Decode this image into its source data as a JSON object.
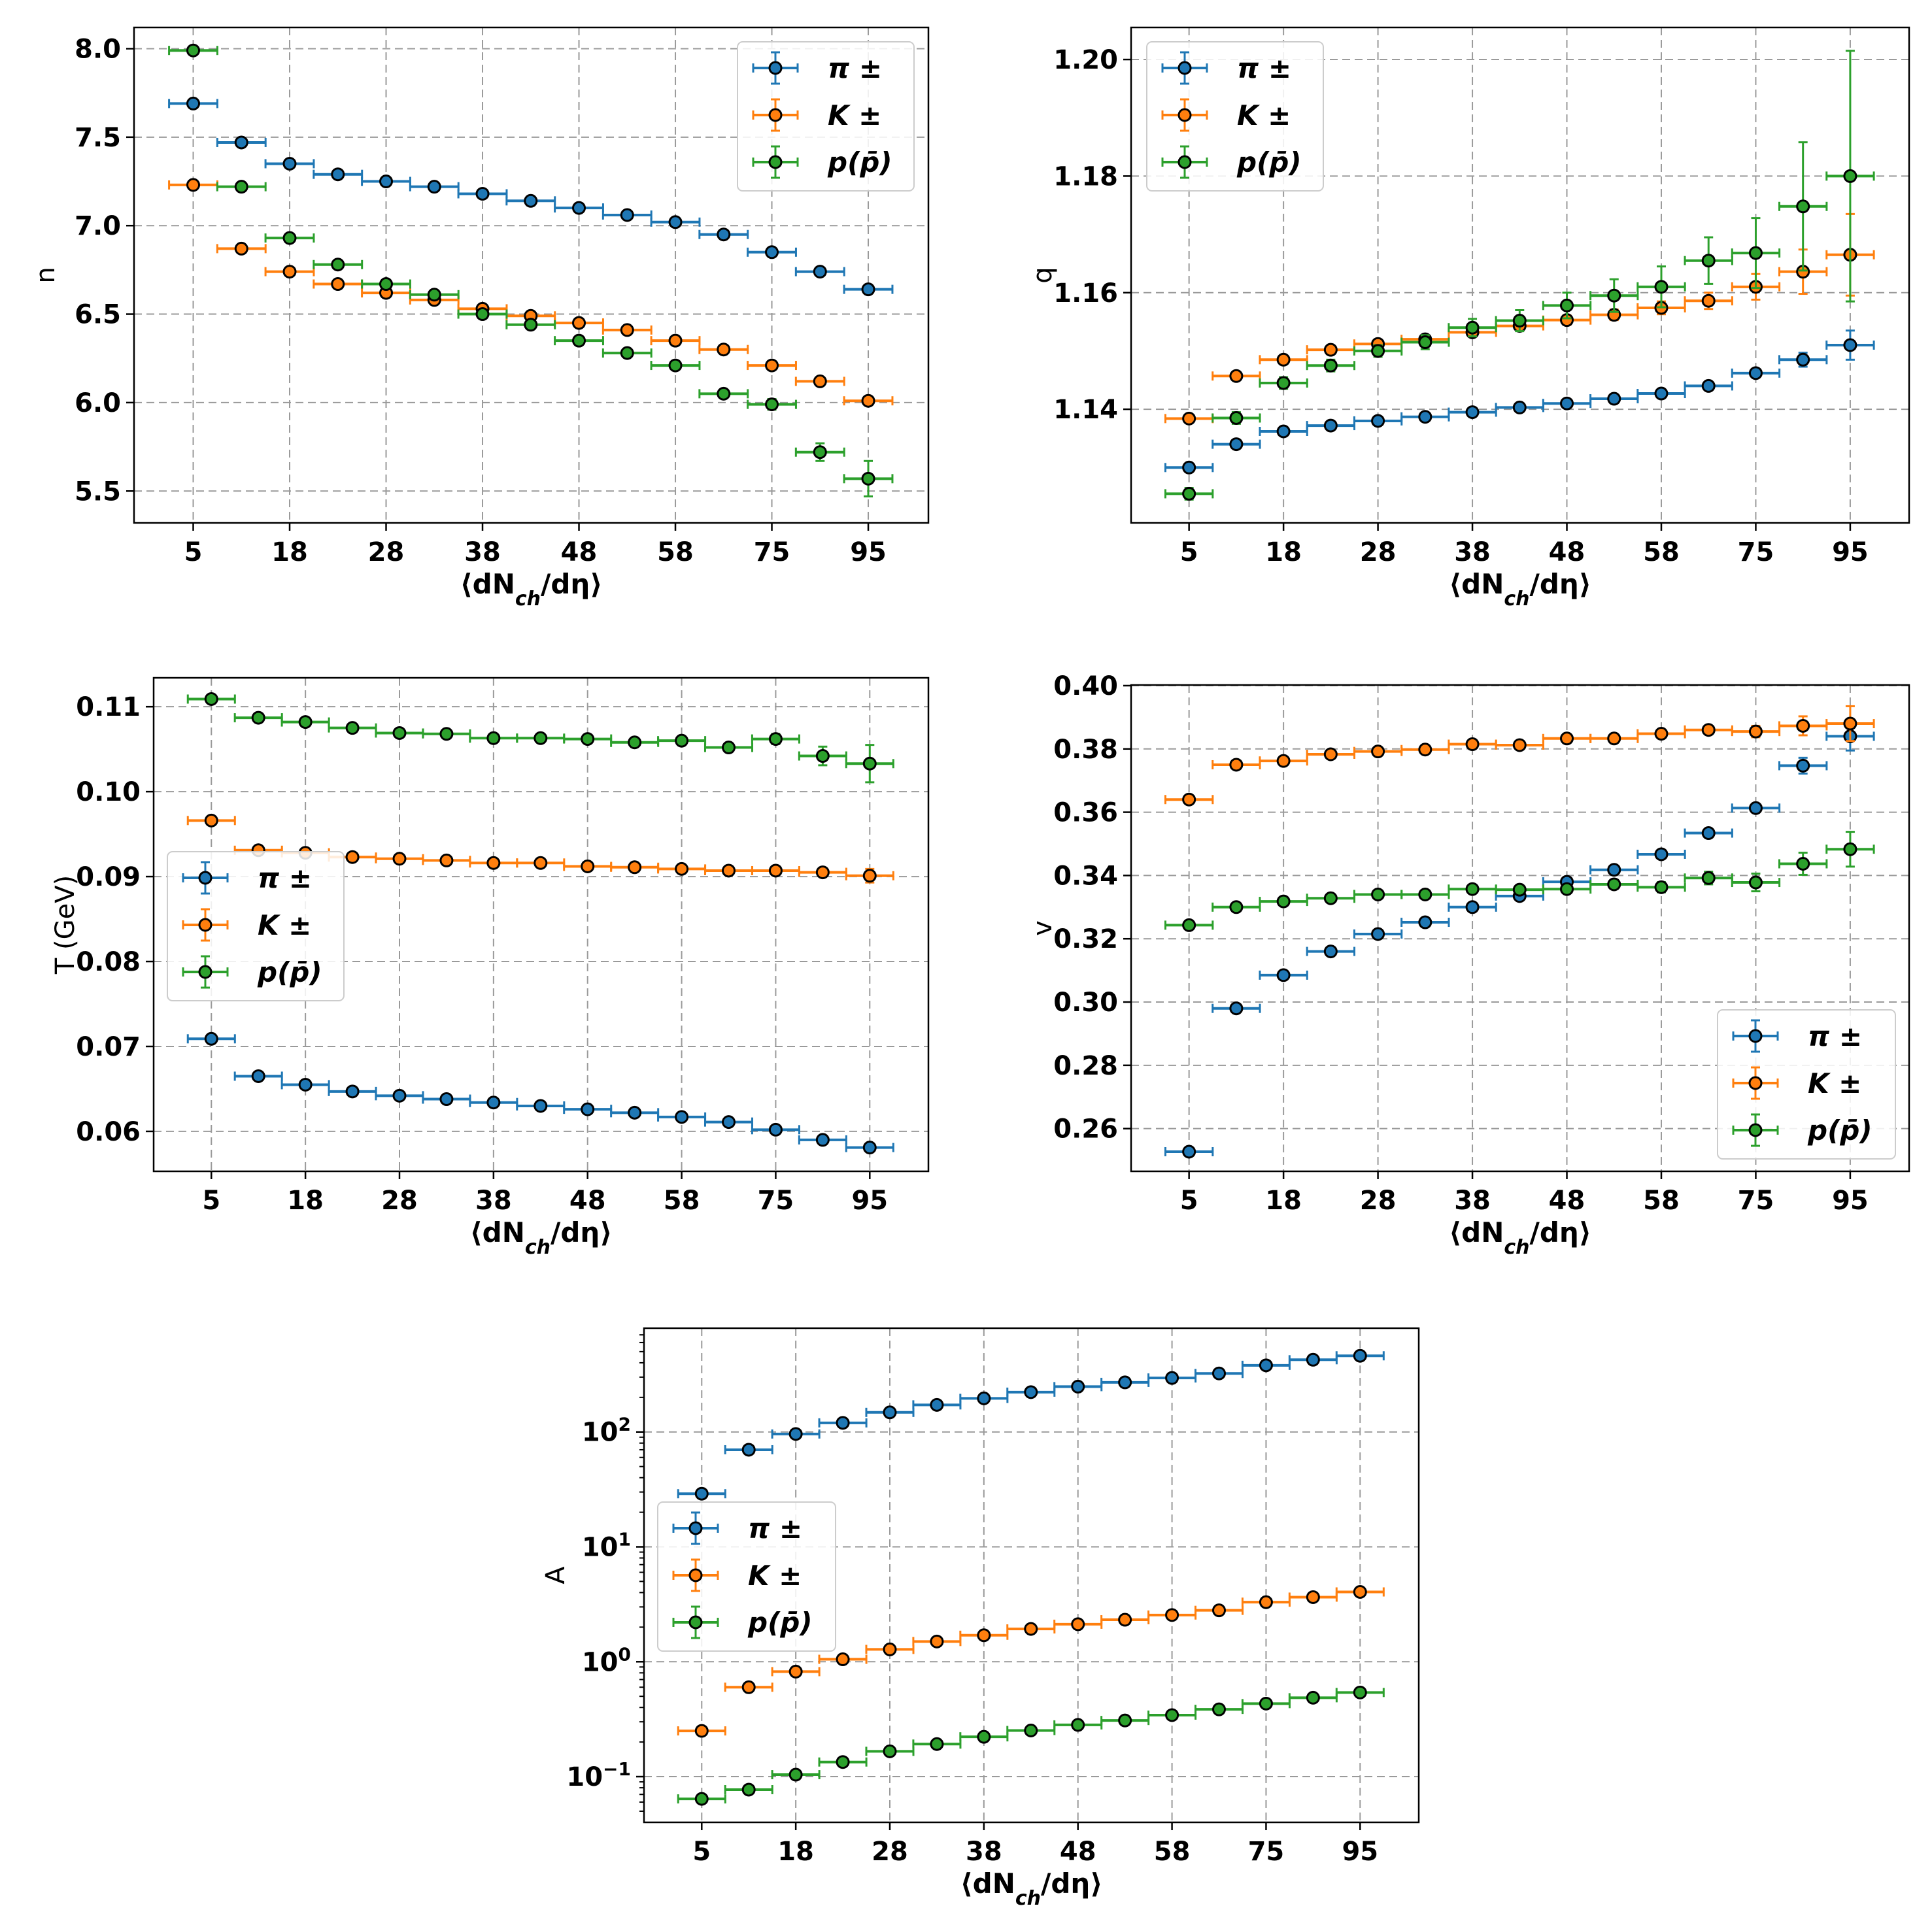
{
  "chart_data": [
    {
      "id": "n",
      "type": "scatter",
      "ylabel": "n",
      "xlabel_html": "⟨dN<sub>ch</sub>/dη⟩",
      "x_tick_labels": [
        "5",
        "18",
        "28",
        "38",
        "48",
        "58",
        "75",
        "95"
      ],
      "yticks": [
        5.5,
        6.0,
        6.5,
        7.0,
        7.5,
        8.0
      ],
      "ytick_labels": [
        "5.5",
        "6.0",
        "6.5",
        "7.0",
        "7.5",
        "8.0"
      ],
      "ylim": [
        5.32,
        8.12
      ],
      "yscale": "linear",
      "legend_position": "upper-right",
      "legend": [
        "π ±",
        "K ±",
        "p(p̄)"
      ],
      "series": [
        {
          "name": "pi",
          "color": "#1f77b4",
          "values": [
            7.69,
            7.47,
            7.35,
            7.29,
            7.25,
            7.22,
            7.18,
            7.14,
            7.1,
            7.06,
            7.02,
            6.95,
            6.85,
            6.74,
            6.64
          ],
          "errors": [
            0.01,
            0.01,
            0.01,
            0.01,
            0.01,
            0.01,
            0.01,
            0.01,
            0.01,
            0.01,
            0.01,
            0.01,
            0.01,
            0.01,
            0.01
          ]
        },
        {
          "name": "K",
          "color": "#ff7f0e",
          "values": [
            7.23,
            6.87,
            6.74,
            6.67,
            6.62,
            6.58,
            6.53,
            6.49,
            6.45,
            6.41,
            6.35,
            6.3,
            6.21,
            6.12,
            6.01
          ],
          "errors": [
            0.01,
            0.01,
            0.01,
            0.01,
            0.01,
            0.01,
            0.01,
            0.01,
            0.01,
            0.01,
            0.01,
            0.01,
            0.01,
            0.015,
            0.02
          ]
        },
        {
          "name": "p",
          "color": "#2ca02c",
          "values": [
            7.99,
            7.22,
            6.93,
            6.78,
            6.67,
            6.61,
            6.5,
            6.44,
            6.35,
            6.28,
            6.21,
            6.05,
            5.99,
            5.72,
            5.57
          ],
          "errors": [
            0.01,
            0.01,
            0.01,
            0.01,
            0.01,
            0.01,
            0.01,
            0.01,
            0.01,
            0.01,
            0.01,
            0.02,
            0.03,
            0.05,
            0.1
          ]
        }
      ]
    },
    {
      "id": "q",
      "type": "scatter",
      "ylabel": "q",
      "xlabel_html": "⟨dN<sub>ch</sub>/dη⟩",
      "x_tick_labels": [
        "5",
        "18",
        "28",
        "38",
        "48",
        "58",
        "75",
        "95"
      ],
      "yticks": [
        1.14,
        1.16,
        1.18,
        1.2
      ],
      "ytick_labels": [
        "1.14",
        "1.16",
        "1.18",
        "1.20"
      ],
      "ylim": [
        1.1205,
        1.2055
      ],
      "yscale": "linear",
      "legend_position": "upper-left",
      "legend": [
        "π ±",
        "K ±",
        "p(p̄)"
      ],
      "series": [
        {
          "name": "pi",
          "color": "#1f77b4",
          "values": [
            1.13,
            1.134,
            1.1362,
            1.1372,
            1.138,
            1.1387,
            1.1395,
            1.1403,
            1.141,
            1.1418,
            1.1427,
            1.144,
            1.1462,
            1.1485,
            1.151
          ],
          "errors": [
            0.0003,
            0.0003,
            0.0003,
            0.0003,
            0.0003,
            0.0003,
            0.0003,
            0.0003,
            0.0003,
            0.0003,
            0.0004,
            0.0005,
            0.0007,
            0.0012,
            0.0025
          ]
        },
        {
          "name": "K",
          "color": "#ff7f0e",
          "values": [
            1.1384,
            1.1457,
            1.1485,
            1.1502,
            1.1512,
            1.152,
            1.1532,
            1.1543,
            1.1553,
            1.1562,
            1.1574,
            1.1586,
            1.161,
            1.1636,
            1.1665
          ],
          "errors": [
            0.0004,
            0.0005,
            0.0005,
            0.0005,
            0.0005,
            0.0006,
            0.0006,
            0.0007,
            0.0008,
            0.0009,
            0.0011,
            0.0014,
            0.0022,
            0.0038,
            0.007
          ]
        },
        {
          "name": "p",
          "color": "#2ca02c",
          "values": [
            1.1255,
            1.1385,
            1.1445,
            1.1475,
            1.15,
            1.1515,
            1.154,
            1.1552,
            1.1578,
            1.1595,
            1.161,
            1.1655,
            1.1668,
            1.1748,
            1.18
          ],
          "errors": [
            0.001,
            0.001,
            0.001,
            0.001,
            0.001,
            0.0012,
            0.0015,
            0.0018,
            0.0022,
            0.0028,
            0.0035,
            0.004,
            0.006,
            0.011,
            0.0215
          ]
        }
      ]
    },
    {
      "id": "T",
      "type": "scatter",
      "ylabel": "T (GeV)",
      "xlabel_html": "⟨dN<sub>ch</sub>/dη⟩",
      "x_tick_labels": [
        "5",
        "18",
        "28",
        "38",
        "48",
        "58",
        "75",
        "95"
      ],
      "yticks": [
        0.06,
        0.07,
        0.08,
        0.09,
        0.1,
        0.11
      ],
      "ytick_labels": [
        "0.06",
        "0.07",
        "0.08",
        "0.09",
        "0.10",
        "0.11"
      ],
      "ylim": [
        0.0553,
        0.1134
      ],
      "yscale": "linear",
      "legend_position": "center-left",
      "legend": [
        "π ±",
        "K ±",
        "p(p̄)"
      ],
      "series": [
        {
          "name": "pi",
          "color": "#1f77b4",
          "values": [
            0.0709,
            0.0665,
            0.0655,
            0.0647,
            0.0642,
            0.0638,
            0.0634,
            0.063,
            0.0626,
            0.0622,
            0.0617,
            0.0611,
            0.0602,
            0.059,
            0.0581
          ],
          "errors": [
            0.0002,
            0.0002,
            0.0002,
            0.0002,
            0.0002,
            0.0002,
            0.0002,
            0.0002,
            0.0002,
            0.0002,
            0.0002,
            0.0002,
            0.0002,
            0.0002,
            0.0003
          ]
        },
        {
          "name": "K",
          "color": "#ff7f0e",
          "values": [
            0.0966,
            0.0931,
            0.0928,
            0.0923,
            0.0921,
            0.0919,
            0.0916,
            0.0916,
            0.0912,
            0.0911,
            0.0909,
            0.0907,
            0.0907,
            0.0905,
            0.0901
          ],
          "errors": [
            0.0002,
            0.0002,
            0.0002,
            0.0002,
            0.0002,
            0.0002,
            0.0002,
            0.0002,
            0.0002,
            0.0002,
            0.0002,
            0.0002,
            0.0003,
            0.0004,
            0.0008
          ]
        },
        {
          "name": "p",
          "color": "#2ca02c",
          "values": [
            0.1109,
            0.1087,
            0.1082,
            0.1075,
            0.1069,
            0.1068,
            0.1063,
            0.1063,
            0.1062,
            0.1058,
            0.106,
            0.1052,
            0.1062,
            0.1042,
            0.1033
          ],
          "errors": [
            0.0003,
            0.0003,
            0.0003,
            0.0003,
            0.0003,
            0.0003,
            0.0003,
            0.0003,
            0.0003,
            0.0003,
            0.0004,
            0.0004,
            0.0006,
            0.0011,
            0.0022
          ]
        }
      ]
    },
    {
      "id": "v",
      "type": "scatter",
      "ylabel": "v",
      "xlabel_html": "⟨dN<sub>ch</sub>/dη⟩",
      "x_tick_labels": [
        "5",
        "18",
        "28",
        "38",
        "48",
        "58",
        "75",
        "95"
      ],
      "yticks": [
        0.26,
        0.28,
        0.3,
        0.32,
        0.34,
        0.36,
        0.38,
        0.4
      ],
      "ytick_labels": [
        "0.26",
        "0.28",
        "0.30",
        "0.32",
        "0.34",
        "0.36",
        "0.38",
        "0.40"
      ],
      "ylim": [
        0.2465,
        0.4002
      ],
      "yscale": "linear",
      "legend_position": "lower-right",
      "legend": [
        "π ±",
        "K ±",
        "p(p̄)"
      ],
      "series": [
        {
          "name": "pi",
          "color": "#1f77b4",
          "values": [
            0.2527,
            0.298,
            0.3085,
            0.316,
            0.3215,
            0.3252,
            0.33,
            0.3335,
            0.338,
            0.3418,
            0.3467,
            0.3534,
            0.3613,
            0.3747,
            0.384
          ],
          "errors": [
            0.0005,
            0.0005,
            0.0005,
            0.0005,
            0.0005,
            0.0005,
            0.0005,
            0.0005,
            0.0005,
            0.0005,
            0.0006,
            0.0008,
            0.0012,
            0.0025,
            0.0045
          ]
        },
        {
          "name": "K",
          "color": "#ff7f0e",
          "values": [
            0.364,
            0.375,
            0.3762,
            0.3783,
            0.3792,
            0.3798,
            0.3815,
            0.3812,
            0.3833,
            0.3833,
            0.3848,
            0.386,
            0.3855,
            0.3873,
            0.388
          ],
          "errors": [
            0.0005,
            0.0005,
            0.0005,
            0.0005,
            0.0005,
            0.0005,
            0.0005,
            0.0006,
            0.0007,
            0.0008,
            0.001,
            0.0012,
            0.0018,
            0.003,
            0.0055
          ]
        },
        {
          "name": "p",
          "color": "#2ca02c",
          "values": [
            0.3243,
            0.33,
            0.3318,
            0.3328,
            0.334,
            0.334,
            0.3357,
            0.3355,
            0.3357,
            0.3372,
            0.3363,
            0.3392,
            0.3378,
            0.3437,
            0.3483
          ],
          "errors": [
            0.0005,
            0.0005,
            0.0005,
            0.0005,
            0.0006,
            0.0007,
            0.0008,
            0.001,
            0.0012,
            0.0014,
            0.0016,
            0.002,
            0.0028,
            0.0035,
            0.0055
          ]
        }
      ]
    },
    {
      "id": "A",
      "type": "scatter",
      "ylabel": "A",
      "xlabel_html": "⟨dN<sub>ch</sub>/dη⟩",
      "x_tick_labels": [
        "5",
        "18",
        "28",
        "38",
        "48",
        "58",
        "75",
        "95"
      ],
      "yticks": [
        0.1,
        1,
        10,
        100
      ],
      "ytick_labels_html": [
        "10<tspan baseline-shift='super' font-size='28'>−1</tspan>",
        "10<tspan baseline-shift='super' font-size='28'>0</tspan>",
        "10<tspan baseline-shift='super' font-size='28'>1</tspan>",
        "10<tspan baseline-shift='super' font-size='28'>2</tspan>"
      ],
      "ylim": [
        0.04,
        800
      ],
      "yscale": "log",
      "legend_position": "center-left",
      "legend": [
        "π ±",
        "K ±",
        "p(p̄)"
      ],
      "series": [
        {
          "name": "pi",
          "color": "#1f77b4",
          "values": [
            29,
            70,
            96,
            120,
            148,
            172,
            196,
            222,
            248,
            270,
            295,
            323,
            380,
            425,
            460
          ],
          "errors": [
            0,
            0,
            0,
            0,
            0,
            0,
            0,
            0,
            0,
            0,
            0,
            0,
            0,
            0,
            0
          ]
        },
        {
          "name": "K",
          "color": "#ff7f0e",
          "values": [
            0.25,
            0.6,
            0.82,
            1.05,
            1.28,
            1.5,
            1.7,
            1.93,
            2.12,
            2.32,
            2.55,
            2.8,
            3.3,
            3.65,
            4.05
          ],
          "errors": [
            0,
            0,
            0,
            0,
            0,
            0,
            0,
            0,
            0,
            0,
            0,
            0,
            0,
            0,
            0
          ]
        },
        {
          "name": "p",
          "color": "#2ca02c",
          "values": [
            0.064,
            0.077,
            0.104,
            0.134,
            0.166,
            0.192,
            0.222,
            0.252,
            0.282,
            0.308,
            0.343,
            0.385,
            0.432,
            0.486,
            0.54
          ],
          "errors": [
            0,
            0,
            0,
            0,
            0,
            0,
            0,
            0,
            0,
            0,
            0,
            0,
            0,
            0,
            0
          ]
        }
      ]
    }
  ]
}
